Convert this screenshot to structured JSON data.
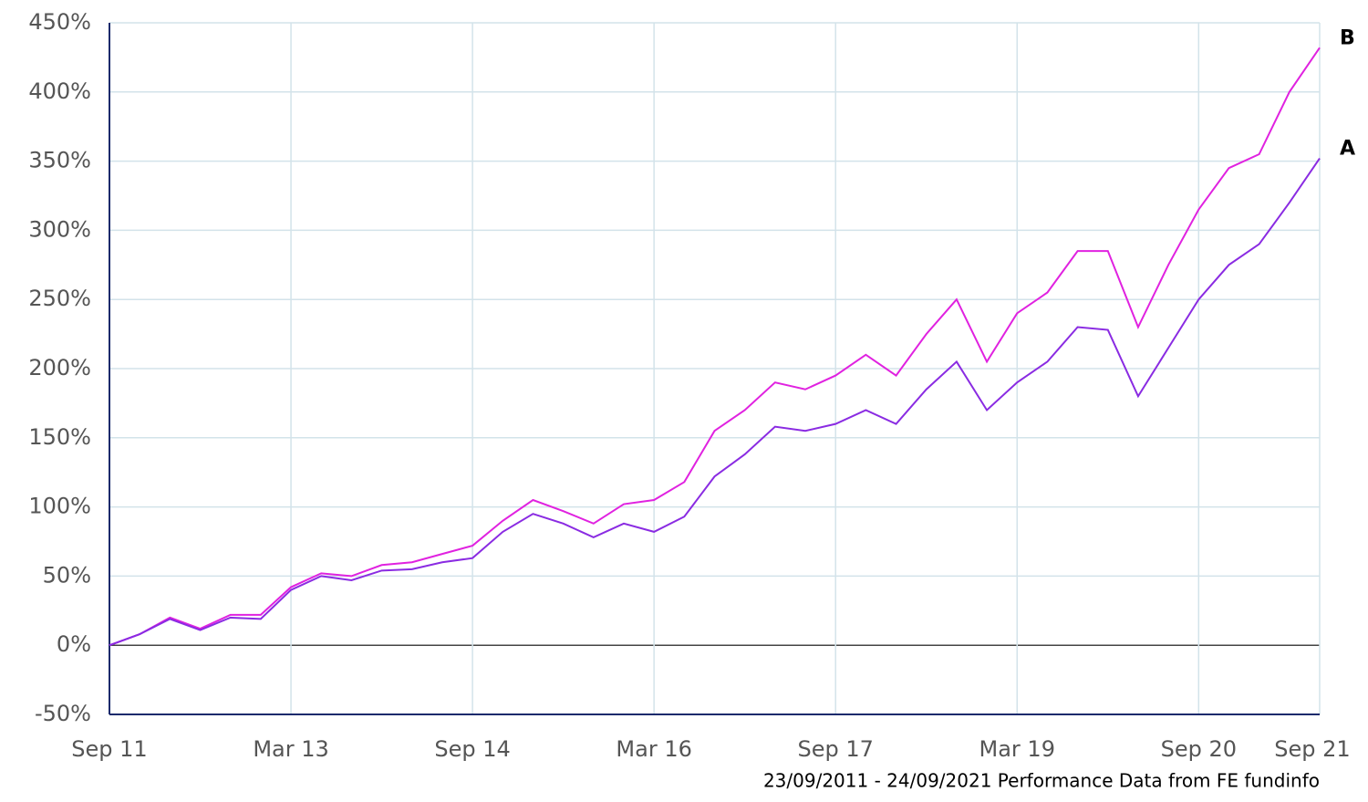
{
  "chart_data": {
    "type": "line",
    "footnote": "23/09/2011 - 24/09/2021 Performance Data from FE fundinfo",
    "categories": [
      "Sep 11",
      null,
      null,
      null,
      null,
      null,
      "Mar 13",
      null,
      null,
      null,
      null,
      null,
      "Sep 14",
      null,
      null,
      null,
      null,
      null,
      "Mar 16",
      null,
      null,
      null,
      null,
      null,
      "Sep 17",
      null,
      null,
      null,
      null,
      null,
      "Mar 19",
      null,
      null,
      null,
      null,
      null,
      "Sep 20",
      null,
      null,
      null,
      "Sep 21"
    ],
    "series": [
      {
        "name": "B",
        "color": "#e022e0",
        "values": [
          0,
          8,
          20,
          12,
          22,
          22,
          42,
          52,
          50,
          58,
          60,
          66,
          72,
          90,
          105,
          97,
          88,
          102,
          105,
          118,
          155,
          170,
          190,
          185,
          195,
          210,
          195,
          225,
          250,
          205,
          240,
          255,
          285,
          285,
          230,
          275,
          315,
          345,
          355,
          400,
          432
        ]
      },
      {
        "name": "A",
        "color": "#8a2be2",
        "values": [
          0,
          8,
          19,
          11,
          20,
          19,
          40,
          50,
          47,
          54,
          55,
          60,
          63,
          82,
          95,
          88,
          78,
          88,
          82,
          93,
          122,
          138,
          158,
          155,
          160,
          170,
          160,
          185,
          205,
          170,
          190,
          205,
          230,
          228,
          180,
          215,
          250,
          275,
          290,
          320,
          352
        ]
      }
    ],
    "ylim": [
      -50,
      450
    ],
    "yticks": [
      {
        "value": -50,
        "label": "-50%"
      },
      {
        "value": 0,
        "label": "0%"
      },
      {
        "value": 50,
        "label": "50%"
      },
      {
        "value": 100,
        "label": "100%"
      },
      {
        "value": 150,
        "label": "150%"
      },
      {
        "value": 200,
        "label": "200%"
      },
      {
        "value": 250,
        "label": "250%"
      },
      {
        "value": 300,
        "label": "300%"
      },
      {
        "value": 350,
        "label": "350%"
      },
      {
        "value": 400,
        "label": "400%"
      },
      {
        "value": 450,
        "label": "450%"
      }
    ],
    "grid": true
  }
}
